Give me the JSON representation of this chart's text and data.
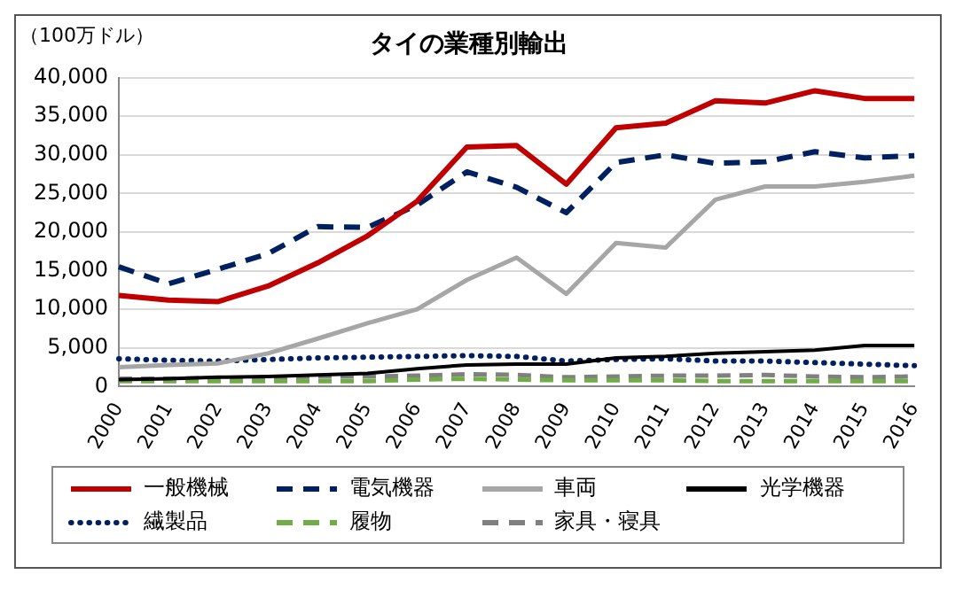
{
  "chart_data": {
    "type": "line",
    "title": "タイの業種別輸出",
    "ylabel": "（100万ドル）",
    "categories": [
      "2000",
      "2001",
      "2002",
      "2003",
      "2004",
      "2005",
      "2006",
      "2007",
      "2008",
      "2009",
      "2010",
      "2011",
      "2012",
      "2013",
      "2014",
      "2015",
      "2016"
    ],
    "ylim": [
      0,
      40000
    ],
    "yticks": [
      {
        "value": 0,
        "label": "0"
      },
      {
        "value": 5000,
        "label": "5,000"
      },
      {
        "value": 10000,
        "label": "10,000"
      },
      {
        "value": 15000,
        "label": "15,000"
      },
      {
        "value": 20000,
        "label": "20,000"
      },
      {
        "value": 25000,
        "label": "25,000"
      },
      {
        "value": 30000,
        "label": "30,000"
      },
      {
        "value": 35000,
        "label": "35,000"
      },
      {
        "value": 40000,
        "label": "40,000"
      }
    ],
    "grid": "y",
    "legend": "bottom",
    "marker": "none",
    "series": [
      {
        "name": "一般機械",
        "color": "#c00000",
        "line_style": "solid",
        "values": [
          11800,
          11200,
          11000,
          13000,
          16000,
          19500,
          24000,
          31000,
          31200,
          26200,
          33500,
          34100,
          37000,
          36700,
          38300,
          37300,
          37300
        ]
      },
      {
        "name": "電気機器",
        "color": "#002060",
        "line_style": "dashed",
        "values": [
          15500,
          13300,
          15200,
          17200,
          20700,
          20600,
          23500,
          27800,
          25800,
          22500,
          29000,
          30000,
          28900,
          29100,
          30400,
          29600,
          29900
        ]
      },
      {
        "name": "車両",
        "color": "#a6a6a6",
        "line_style": "solid",
        "values": [
          2500,
          2800,
          3000,
          4300,
          6200,
          8200,
          10000,
          13800,
          16700,
          12000,
          18600,
          18000,
          24200,
          25900,
          25900,
          26500,
          27300
        ]
      },
      {
        "name": "光学機器",
        "color": "#000000",
        "line_style": "solid",
        "values": [
          900,
          1000,
          1200,
          1300,
          1500,
          1700,
          2300,
          2800,
          2900,
          2900,
          3700,
          3900,
          4300,
          4500,
          4700,
          5300,
          5300
        ]
      },
      {
        "name": "繊製品",
        "color": "#002060",
        "line_style": "dotted",
        "values": [
          3600,
          3400,
          3300,
          3500,
          3700,
          3800,
          3900,
          4000,
          3900,
          3300,
          3500,
          3600,
          3300,
          3300,
          3100,
          2900,
          2700
        ]
      },
      {
        "name": "履物",
        "color": "#70ad47",
        "line_style": "dashed",
        "values": [
          700,
          700,
          700,
          700,
          700,
          700,
          900,
          1000,
          900,
          800,
          800,
          800,
          700,
          700,
          700,
          700,
          700
        ]
      },
      {
        "name": "家具・寝具",
        "color": "#808080",
        "line_style": "dashed",
        "values": [
          1000,
          1000,
          1100,
          1100,
          1300,
          1300,
          1400,
          1600,
          1500,
          1200,
          1300,
          1400,
          1400,
          1500,
          1300,
          1200,
          1300
        ]
      }
    ]
  }
}
